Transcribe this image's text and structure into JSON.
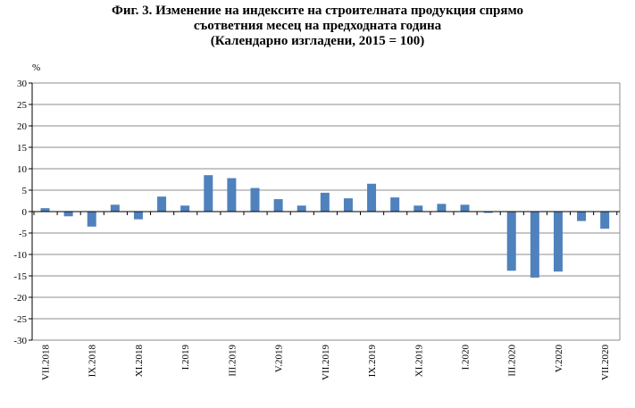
{
  "chart_data": {
    "type": "bar",
    "title_lines": [
      "Фиг. 3. Изменение на индексите на строителната продукция спрямо",
      "съответния месец на предходната година",
      "(Календарно изгладени, 2015 = 100)"
    ],
    "ylabel": "%",
    "ylim": [
      -30,
      30
    ],
    "yticks": [
      30,
      25,
      20,
      15,
      10,
      5,
      0,
      -5,
      -10,
      -15,
      -20,
      -25,
      -30
    ],
    "grid": true,
    "legend": "none",
    "bar_color": "#4f81bd",
    "grid_color": "#8c8c8c",
    "categories": [
      "VII.2018",
      "VIII.2018",
      "IX.2018",
      "X.2018",
      "XI.2018",
      "XII.2018",
      "I.2019",
      "II.2019",
      "III.2019",
      "IV.2019",
      "V.2019",
      "VI.2019",
      "VII.2019",
      "VIII.2019",
      "IX.2019",
      "X.2019",
      "XI.2019",
      "XII.2019",
      "I.2020",
      "II.2020",
      "III.2020",
      "IV.2020",
      "V.2020",
      "VI.2020",
      "VII.2020"
    ],
    "shown_labels": [
      "VII.2018",
      "IX.2018",
      "XI.2018",
      "I.2019",
      "III.2019",
      "V.2019",
      "VII.2019",
      "IX.2019",
      "XI.2019",
      "I.2020",
      "III.2020",
      "V.2020",
      "VII.2020"
    ],
    "values": [
      0.8,
      -1.1,
      -3.5,
      1.6,
      -1.8,
      3.5,
      1.4,
      8.5,
      7.8,
      5.5,
      2.9,
      1.4,
      4.4,
      3.1,
      6.5,
      3.3,
      1.4,
      1.8,
      1.6,
      -0.3,
      -13.8,
      -15.4,
      -14.0,
      -2.2,
      -4.0
    ]
  }
}
